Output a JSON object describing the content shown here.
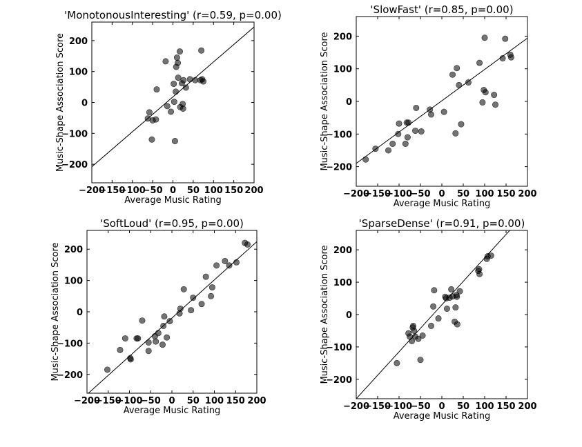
{
  "figure": {
    "background": "#ffffff"
  },
  "style": {
    "point_color": "#000000",
    "point_opacity": 0.55,
    "line_color": "#000000"
  },
  "chart_data": [
    {
      "type": "scatter",
      "title": "'MonotonousInteresting' (r=0.59, p=0.00)",
      "xlabel": "Average Music Rating",
      "ylabel": "Music-Shape Association Score",
      "xlim": [
        -200,
        200
      ],
      "ylim": [
        -260,
        260
      ],
      "xticks": [
        -200,
        -150,
        -100,
        -50,
        0,
        50,
        100,
        150,
        200
      ],
      "xtick_labels": [
        "−200",
        "−150",
        "−100",
        "−50",
        "0",
        "50",
        "100",
        "150",
        "200"
      ],
      "yticks": [
        -200,
        -100,
        0,
        100,
        200
      ],
      "ytick_labels": [
        "−200",
        "−100",
        "0",
        "100",
        "200"
      ],
      "grid": false,
      "fit_line": {
        "slope": 1.13,
        "intercept": 18
      },
      "points": [
        {
          "x": -62,
          "y": -52
        },
        {
          "x": -58,
          "y": -32
        },
        {
          "x": -52,
          "y": -120
        },
        {
          "x": -50,
          "y": -58
        },
        {
          "x": -42,
          "y": -55
        },
        {
          "x": -40,
          "y": 42
        },
        {
          "x": -18,
          "y": 133
        },
        {
          "x": -14,
          "y": -12
        },
        {
          "x": -5,
          "y": -30
        },
        {
          "x": 2,
          "y": 60
        },
        {
          "x": 3,
          "y": 2
        },
        {
          "x": 5,
          "y": -125
        },
        {
          "x": 7,
          "y": 35
        },
        {
          "x": 8,
          "y": 115
        },
        {
          "x": 10,
          "y": 145
        },
        {
          "x": 12,
          "y": 128
        },
        {
          "x": 13,
          "y": 80
        },
        {
          "x": 17,
          "y": 165
        },
        {
          "x": 18,
          "y": -15
        },
        {
          "x": 22,
          "y": 62
        },
        {
          "x": 24,
          "y": -5
        },
        {
          "x": 25,
          "y": -20
        },
        {
          "x": 26,
          "y": 72
        },
        {
          "x": 32,
          "y": 48
        },
        {
          "x": 42,
          "y": 75
        },
        {
          "x": 55,
          "y": 72
        },
        {
          "x": 68,
          "y": 72
        },
        {
          "x": 70,
          "y": 168
        },
        {
          "x": 72,
          "y": 75
        },
        {
          "x": 75,
          "y": 68
        }
      ]
    },
    {
      "type": "scatter",
      "title": "'SlowFast' (r=0.85, p=0.00)",
      "xlabel": "Average Music Rating",
      "ylabel": "Music-Shape Association Score",
      "xlim": [
        -200,
        200
      ],
      "ylim": [
        -260,
        260
      ],
      "xticks": [
        -200,
        -150,
        -100,
        -50,
        0,
        50,
        100,
        150,
        200
      ],
      "xtick_labels": [
        "−200",
        "−150",
        "−100",
        "−50",
        "0",
        "50",
        "100",
        "150",
        "200"
      ],
      "yticks": [
        -200,
        -100,
        0,
        100,
        200
      ],
      "ytick_labels": [
        "−200",
        "−100",
        "0",
        "100",
        "200"
      ],
      "grid": false,
      "fit_line": {
        "slope": 0.96,
        "intercept": 2
      },
      "points": [
        {
          "x": -178,
          "y": -178
        },
        {
          "x": -155,
          "y": -145
        },
        {
          "x": -125,
          "y": -150
        },
        {
          "x": -115,
          "y": -130
        },
        {
          "x": -102,
          "y": -100
        },
        {
          "x": -100,
          "y": -68
        },
        {
          "x": -85,
          "y": -130
        },
        {
          "x": -82,
          "y": -65
        },
        {
          "x": -80,
          "y": -110
        },
        {
          "x": -78,
          "y": -65
        },
        {
          "x": -62,
          "y": -90
        },
        {
          "x": -60,
          "y": -20
        },
        {
          "x": -48,
          "y": -92
        },
        {
          "x": -28,
          "y": -25
        },
        {
          "x": -25,
          "y": -40
        },
        {
          "x": 5,
          "y": -32
        },
        {
          "x": 25,
          "y": 82
        },
        {
          "x": 32,
          "y": -98
        },
        {
          "x": 35,
          "y": 102
        },
        {
          "x": 40,
          "y": 50
        },
        {
          "x": 45,
          "y": -70
        },
        {
          "x": 62,
          "y": 58
        },
        {
          "x": 88,
          "y": 118
        },
        {
          "x": 95,
          "y": -3
        },
        {
          "x": 98,
          "y": 35
        },
        {
          "x": 100,
          "y": 195
        },
        {
          "x": 102,
          "y": 28
        },
        {
          "x": 122,
          "y": 20
        },
        {
          "x": 125,
          "y": -10
        },
        {
          "x": 142,
          "y": 132
        },
        {
          "x": 148,
          "y": 192
        },
        {
          "x": 160,
          "y": 143
        },
        {
          "x": 162,
          "y": 135
        }
      ]
    },
    {
      "type": "scatter",
      "title": "'SoftLoud' (r=0.95, p=0.00)",
      "xlabel": "Average Music Rating",
      "ylabel": "Music-Shape Association Score",
      "xlim": [
        -200,
        200
      ],
      "ylim": [
        -260,
        260
      ],
      "xticks": [
        -200,
        -150,
        -100,
        -50,
        0,
        50,
        100,
        150,
        200
      ],
      "xtick_labels": [
        "−200",
        "−150",
        "−100",
        "−50",
        "0",
        "50",
        "100",
        "150",
        "200"
      ],
      "yticks": [
        -200,
        -100,
        0,
        100,
        200
      ],
      "ytick_labels": [
        "−200",
        "−100",
        "0",
        "100",
        "200"
      ],
      "grid": false,
      "fit_line": {
        "slope": 1.22,
        "intercept": -20
      },
      "points": [
        {
          "x": -152,
          "y": -185
        },
        {
          "x": -122,
          "y": -122
        },
        {
          "x": -110,
          "y": -85
        },
        {
          "x": -98,
          "y": -148
        },
        {
          "x": -97,
          "y": -152
        },
        {
          "x": -83,
          "y": -85
        },
        {
          "x": -80,
          "y": -85
        },
        {
          "x": -70,
          "y": -28
        },
        {
          "x": -55,
          "y": -125
        },
        {
          "x": -55,
          "y": -98
        },
        {
          "x": -40,
          "y": -78
        },
        {
          "x": -38,
          "y": -95
        },
        {
          "x": -32,
          "y": -68
        },
        {
          "x": -22,
          "y": -105
        },
        {
          "x": -20,
          "y": -45
        },
        {
          "x": -18,
          "y": -15
        },
        {
          "x": -12,
          "y": -82
        },
        {
          "x": -5,
          "y": -30
        },
        {
          "x": 18,
          "y": -5
        },
        {
          "x": 20,
          "y": 10
        },
        {
          "x": 28,
          "y": 72
        },
        {
          "x": 45,
          "y": 5
        },
        {
          "x": 50,
          "y": 45
        },
        {
          "x": 70,
          "y": 25
        },
        {
          "x": 80,
          "y": 112
        },
        {
          "x": 92,
          "y": 50
        },
        {
          "x": 95,
          "y": 78
        },
        {
          "x": 105,
          "y": 148
        },
        {
          "x": 125,
          "y": 162
        },
        {
          "x": 135,
          "y": 148
        },
        {
          "x": 152,
          "y": 158
        },
        {
          "x": 172,
          "y": 220
        },
        {
          "x": 178,
          "y": 215
        }
      ]
    },
    {
      "type": "scatter",
      "title": "'SparseDense' (r=0.91, p=0.00)",
      "xlabel": "Average Music Rating",
      "ylabel": "Music-Shape Association Score",
      "xlim": [
        -200,
        200
      ],
      "ylim": [
        -260,
        260
      ],
      "xticks": [
        -200,
        -150,
        -100,
        -50,
        0,
        50,
        100,
        150,
        200
      ],
      "xtick_labels": [
        "−200",
        "−150",
        "−100",
        "−50",
        "0",
        "50",
        "100",
        "150",
        "200"
      ],
      "yticks": [
        -200,
        -100,
        0,
        100,
        200
      ],
      "ytick_labels": [
        "−200",
        "−100",
        "0",
        "100",
        "200"
      ],
      "grid": false,
      "fit_line": {
        "slope": 1.45,
        "intercept": 30
      },
      "points": [
        {
          "x": -105,
          "y": -150
        },
        {
          "x": -78,
          "y": -58
        },
        {
          "x": -75,
          "y": -68
        },
        {
          "x": -70,
          "y": -82
        },
        {
          "x": -68,
          "y": -40
        },
        {
          "x": -67,
          "y": -35
        },
        {
          "x": -65,
          "y": -50
        },
        {
          "x": -62,
          "y": -68
        },
        {
          "x": -55,
          "y": -75
        },
        {
          "x": -50,
          "y": -140
        },
        {
          "x": -45,
          "y": -65
        },
        {
          "x": -25,
          "y": -35
        },
        {
          "x": -20,
          "y": 25
        },
        {
          "x": -18,
          "y": 75
        },
        {
          "x": -8,
          "y": -12
        },
        {
          "x": 8,
          "y": 55
        },
        {
          "x": 10,
          "y": 50
        },
        {
          "x": 12,
          "y": 18
        },
        {
          "x": 18,
          "y": 52
        },
        {
          "x": 22,
          "y": 78
        },
        {
          "x": 25,
          "y": 56
        },
        {
          "x": 30,
          "y": -22
        },
        {
          "x": 32,
          "y": 22
        },
        {
          "x": 34,
          "y": 60
        },
        {
          "x": 35,
          "y": 55
        },
        {
          "x": 36,
          "y": -30
        },
        {
          "x": 42,
          "y": 72
        },
        {
          "x": 85,
          "y": 135
        },
        {
          "x": 87,
          "y": 140
        },
        {
          "x": 88,
          "y": 125
        },
        {
          "x": 105,
          "y": 172
        },
        {
          "x": 107,
          "y": 180
        },
        {
          "x": 115,
          "y": 182
        }
      ]
    }
  ]
}
